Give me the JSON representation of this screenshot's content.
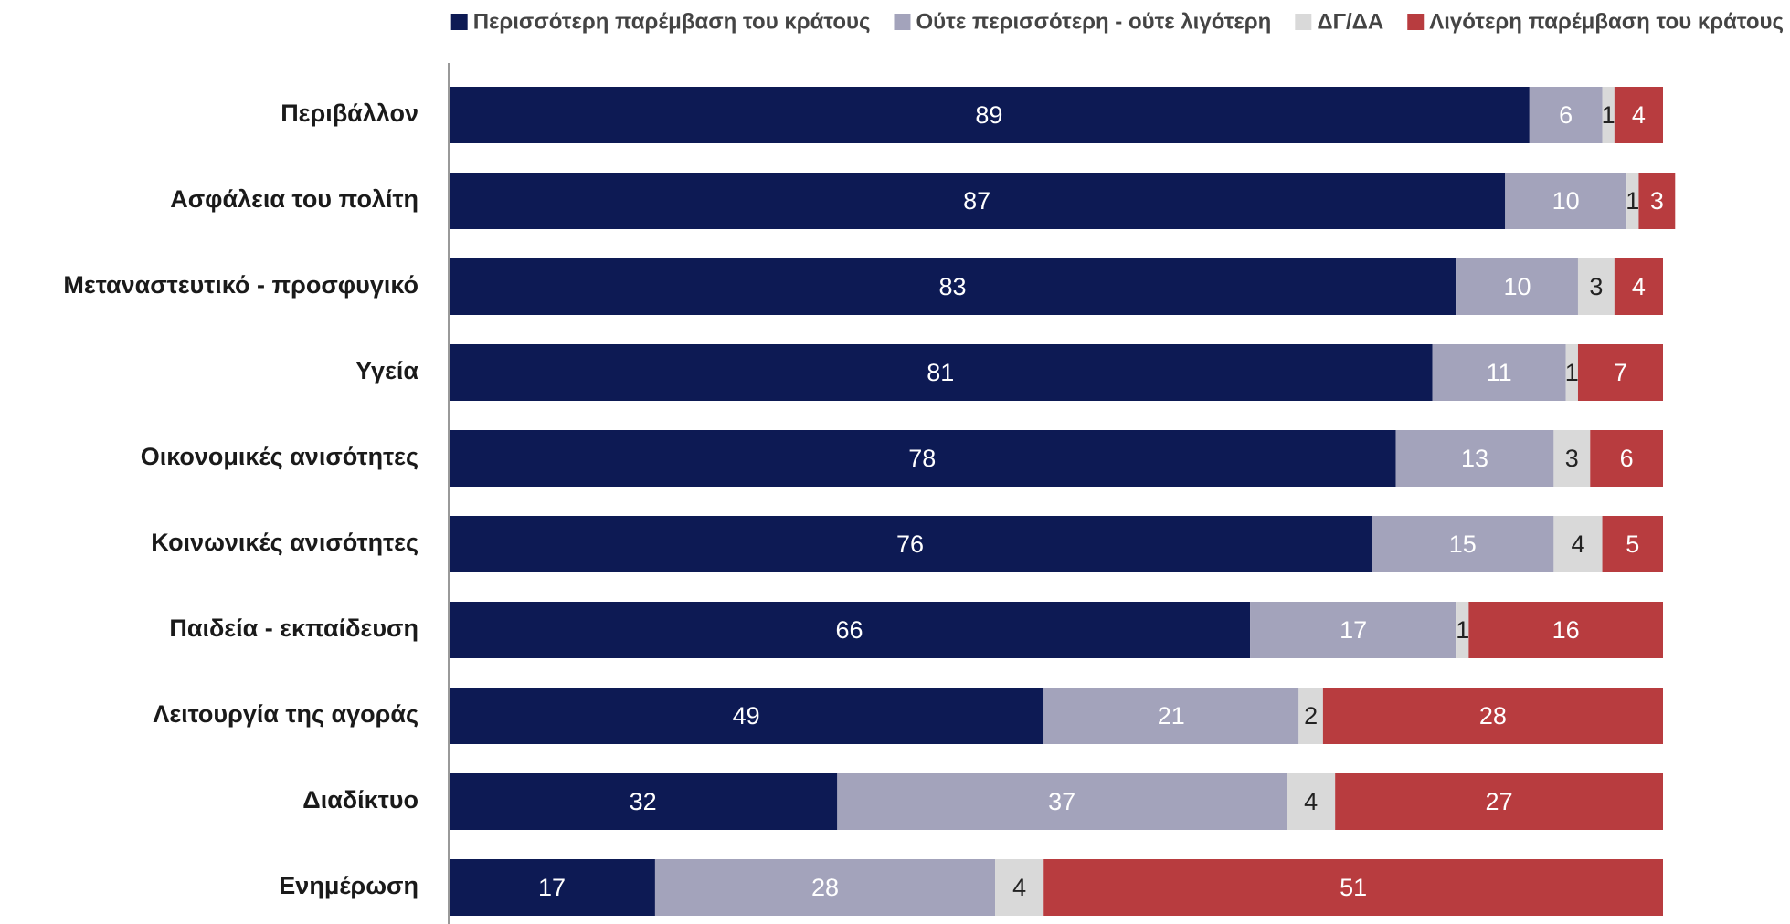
{
  "chart_data": {
    "type": "stacked_bar_horizontal",
    "categories": [
      "Περιβάλλον",
      "Ασφάλεια του πολίτη",
      "Μεταναστευτικό - προσφυγικό",
      "Υγεία",
      "Οικονομικές ανισότητες",
      "Κοινωνικές ανισότητες",
      "Παιδεία - εκπαίδευση",
      "Λειτουργία της αγοράς",
      "Διαδίκτυο",
      "Ενημέρωση"
    ],
    "series": [
      {
        "name": "Περισσότερη παρέμβαση του κράτους",
        "color": "#0d1a54",
        "values": [
          89,
          87,
          83,
          81,
          78,
          76,
          66,
          49,
          32,
          17
        ]
      },
      {
        "name": "Ούτε περισσότερη - ούτε λιγότερη",
        "color": "#a3a3bb",
        "values": [
          6,
          10,
          10,
          11,
          13,
          15,
          17,
          21,
          37,
          28
        ]
      },
      {
        "name": "ΔΓ/ΔΑ",
        "color": "#d9d9d9",
        "values": [
          1,
          1,
          3,
          1,
          3,
          4,
          1,
          2,
          4,
          4
        ]
      },
      {
        "name": "Λιγότερη παρέμβαση του κράτους",
        "color": "#b83c3f",
        "values": [
          4,
          3,
          4,
          7,
          6,
          5,
          16,
          28,
          27,
          51
        ]
      }
    ],
    "xlim": [
      0,
      100
    ],
    "legend": "top"
  }
}
